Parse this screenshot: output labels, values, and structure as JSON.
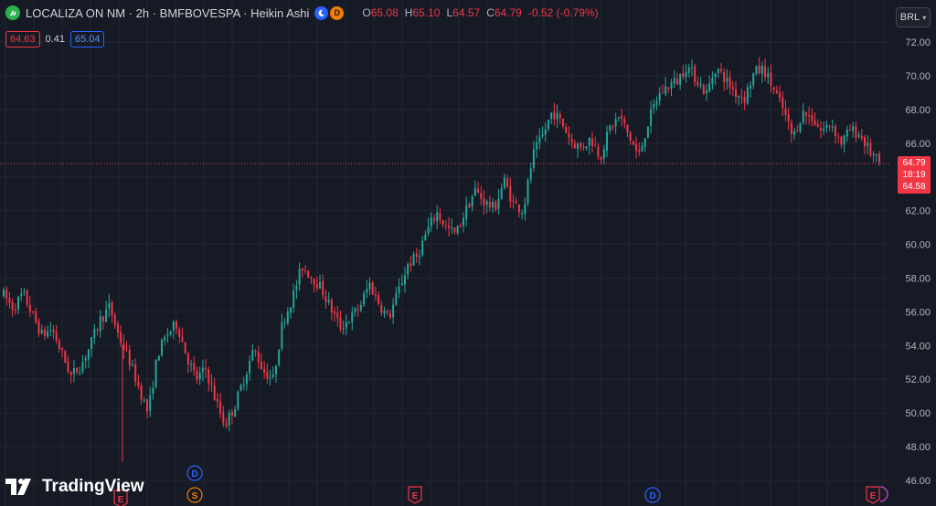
{
  "header": {
    "title": "LOCALIZA ON NM · 2h · BMFBOVESPA · Heikin Ashi",
    "badge_d": "D",
    "ohlc": {
      "o_label": "O",
      "o": "65.08",
      "h_label": "H",
      "h": "65.10",
      "l_label": "L",
      "l": "64.57",
      "c_label": "C",
      "c": "64.79",
      "change": "-0.52 (-0.79%)"
    }
  },
  "trade": {
    "sell": "64.63",
    "spread": "0.41",
    "buy": "65.04"
  },
  "currency": "BRL",
  "branding": "TradingView",
  "last_price": {
    "price": "64.79",
    "countdown": "18:19",
    "low": "64.58"
  },
  "colors": {
    "up": "#26A69A",
    "down": "#F23645",
    "background": "#161A25",
    "grid": "#232632"
  },
  "chart_data": {
    "type": "candlestick-heikin-ashi",
    "ylim": [
      46,
      73
    ],
    "y_ticks": [
      46.0,
      48.0,
      50.0,
      52.0,
      54.0,
      56.0,
      58.0,
      60.0,
      62.0,
      64.0,
      66.0,
      68.0,
      70.0,
      72.0
    ],
    "y_tick_labels": [
      "46.00",
      "48.00",
      "50.00",
      "52.00",
      "54.00",
      "56.00",
      "58.00",
      "60.00",
      "62.00",
      "64.00",
      "66.00",
      "68.00",
      "70.00",
      "72.00"
    ],
    "current_price": 64.79,
    "series": [
      {
        "values": [
          57.0,
          56.2,
          57.1,
          55.8,
          54.6,
          55.0,
          53.6,
          52.2,
          52.8,
          54.0,
          55.5,
          56.3,
          54.5,
          53.2,
          51.6,
          50.0,
          53.5,
          54.7,
          55.3,
          53.4,
          52.0,
          52.6,
          50.8,
          49.3,
          50.4,
          52.1,
          53.8,
          52.5,
          52.0,
          55.4,
          56.8,
          58.7,
          58.1,
          57.4,
          56.2,
          55.1,
          55.6,
          56.3,
          57.7,
          56.5,
          55.6,
          57.2,
          58.8,
          59.3,
          60.8,
          61.9,
          61.0,
          60.6,
          62.0,
          63.2,
          62.5,
          62.1,
          63.8,
          62.4,
          62.0,
          65.3,
          66.4,
          67.9,
          67.2,
          66.1,
          65.7,
          66.3,
          65.2,
          66.9,
          67.6,
          66.4,
          65.2,
          67.3,
          68.8,
          69.4,
          69.7,
          70.6,
          69.8,
          68.9,
          70.5,
          69.8,
          69.0,
          68.7,
          70.2,
          70.4,
          69.2,
          68.0,
          66.3,
          67.8,
          67.5,
          66.7,
          67.2,
          66.0,
          66.8,
          66.5,
          65.5,
          64.8
        ]
      }
    ],
    "markers": [
      {
        "label": "E",
        "kind": "earnings"
      },
      {
        "label": "D",
        "kind": "dividend"
      },
      {
        "label": "S",
        "kind": "split"
      },
      {
        "label": "E",
        "kind": "earnings"
      },
      {
        "label": "D",
        "kind": "dividend"
      },
      {
        "label": "E",
        "kind": "earnings"
      }
    ]
  }
}
